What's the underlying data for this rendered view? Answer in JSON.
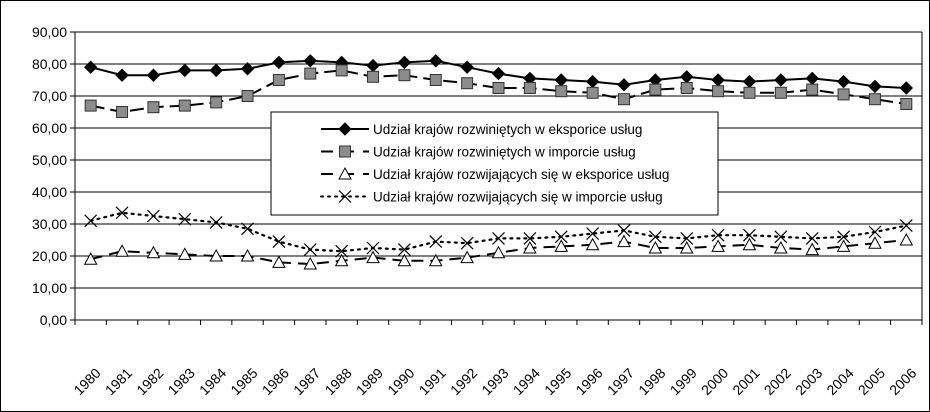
{
  "chart_data": {
    "type": "line",
    "title": "",
    "xlabel": "",
    "ylabel": "",
    "ylim": [
      0,
      90
    ],
    "yticks": [
      "0,00",
      "10,00",
      "20,00",
      "30,00",
      "40,00",
      "50,00",
      "60,00",
      "70,00",
      "80,00",
      "90,00"
    ],
    "grid": true,
    "legend_position": "center",
    "categories": [
      "1980",
      "1981",
      "1982",
      "1983",
      "1984",
      "1985",
      "1986",
      "1987",
      "1988",
      "1989",
      "1990",
      "1991",
      "1992",
      "1993",
      "1994",
      "1995",
      "1996",
      "1997",
      "1998",
      "1999",
      "2000",
      "2001",
      "2002",
      "2003",
      "2004",
      "2005",
      "2006"
    ],
    "series": [
      {
        "name": "Udział krajów rozwiniętych w eksporice usług",
        "marker": "diamond",
        "line": "solid",
        "values": [
          79,
          76.5,
          76.5,
          78,
          78,
          78.5,
          80.5,
          81,
          80.5,
          79.5,
          80.5,
          81,
          79,
          77,
          75.5,
          75,
          74.5,
          73.5,
          75,
          76,
          75,
          74.5,
          75,
          75.5,
          74.5,
          73,
          72.5
        ]
      },
      {
        "name": "Udział krajów rozwiniętych w imporcie usług",
        "marker": "square",
        "line": "long-dash",
        "values": [
          67,
          65,
          66.5,
          67,
          68,
          70,
          75,
          77,
          78,
          76,
          76.5,
          75,
          74,
          72.5,
          72.5,
          71.5,
          71,
          69,
          72,
          72.5,
          71.5,
          71,
          71,
          72,
          70.5,
          69,
          67.5
        ]
      },
      {
        "name": "Udział krajów rozwijających się w eksporice usług",
        "marker": "triangle",
        "line": "dash",
        "values": [
          19,
          21.5,
          21,
          20.5,
          20,
          20,
          18,
          17.5,
          18.5,
          19.5,
          18.5,
          18.5,
          19.5,
          21,
          22.5,
          23,
          23.5,
          24.5,
          22.5,
          22.5,
          23,
          23.5,
          22.5,
          22,
          23,
          24,
          25
        ]
      },
      {
        "name": "Udział krajów rozwijających się w imporcie usług",
        "marker": "x",
        "line": "dotted",
        "values": [
          31,
          33.5,
          32.5,
          31.5,
          30.5,
          28.5,
          24.5,
          22,
          21.5,
          22.5,
          22,
          24.5,
          24,
          25.5,
          25.5,
          26,
          27,
          28,
          26,
          25.5,
          26.5,
          26.5,
          26,
          25.5,
          26,
          27.5,
          29.5
        ]
      }
    ]
  }
}
